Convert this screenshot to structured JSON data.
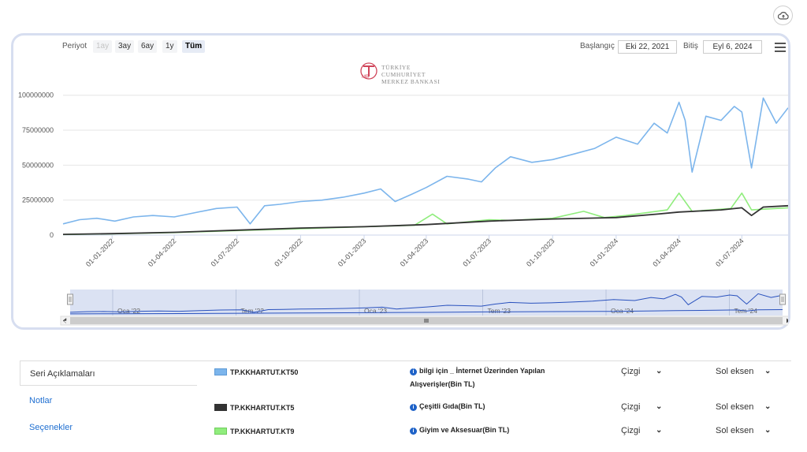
{
  "toolbar": {
    "period_label": "Periyot",
    "range_buttons": [
      "1ay",
      "3ay",
      "6ay",
      "1y",
      "Tüm"
    ],
    "start_label": "Başlangıç",
    "start_value": "Eki 22, 2021",
    "end_label": "Bitiş",
    "end_value": "Eyl 6, 2024"
  },
  "logo": {
    "mark": "TCMB",
    "line1": "TÜRKİYE CUMHURİYET",
    "line2": "MERKEZ BANKASI"
  },
  "navigator": {
    "labels": [
      "Oca '22",
      "Tem '22",
      "Oca '23",
      "Tem '23",
      "Oca '24",
      "Tem '24"
    ]
  },
  "tabs": {
    "items": [
      "Seri Açıklamaları",
      "Notlar",
      "Seçenekler"
    ]
  },
  "series_table": {
    "rows": [
      {
        "code": "TP.KKHARTUT.KT50",
        "description": "bilgi için _ İnternet Üzerinden Yapılan Alışverişler(Bin TL)",
        "type": "Çizgi",
        "axis": "Sol eksen",
        "color": "#7cb5ec"
      },
      {
        "code": "TP.KKHARTUT.KT5",
        "description": "Çeşitli Gıda(Bin TL)",
        "type": "Çizgi",
        "axis": "Sol eksen",
        "color": "#333333"
      },
      {
        "code": "TP.KKHARTUT.KT9",
        "description": "Giyim ve Aksesuar(Bin TL)",
        "type": "Çizgi",
        "axis": "Sol eksen",
        "color": "#90ed7d"
      }
    ]
  },
  "colors": {
    "kt50": "#7cb5ec",
    "kt5": "#333333",
    "kt9": "#90ed7d",
    "navigator_fill": "#c7d3ec",
    "navigator_line": "#2a52be"
  },
  "chart_data": {
    "type": "line",
    "ylim": [
      0,
      100000000
    ],
    "y_ticks": [
      "0",
      "25000000",
      "50000000",
      "75000000",
      "100000000"
    ],
    "x_ticks": [
      "01-01-2022",
      "01-04-2022",
      "01-07-2022",
      "01-10-2022",
      "01-01-2023",
      "01-04-2023",
      "01-07-2023",
      "01-10-2023",
      "01-01-2024",
      "01-04-2024",
      "01-07-2024"
    ],
    "x_range": [
      "2021-10-22",
      "2024-09-06"
    ],
    "series": [
      {
        "name": "TP.KKHARTUT.KT50",
        "x": [
          "2021-10-22",
          "2021-11-15",
          "2021-12-10",
          "2022-01-05",
          "2022-02-01",
          "2022-03-01",
          "2022-04-01",
          "2022-05-01",
          "2022-06-01",
          "2022-07-01",
          "2022-07-20",
          "2022-08-10",
          "2022-09-01",
          "2022-10-01",
          "2022-11-01",
          "2022-12-01",
          "2023-01-01",
          "2023-01-25",
          "2023-02-15",
          "2023-03-10",
          "2023-04-01",
          "2023-05-01",
          "2023-06-01",
          "2023-06-20",
          "2023-07-10",
          "2023-08-01",
          "2023-09-01",
          "2023-10-01",
          "2023-11-01",
          "2023-12-01",
          "2024-01-01",
          "2024-02-01",
          "2024-02-25",
          "2024-03-15",
          "2024-04-01",
          "2024-04-10",
          "2024-04-20",
          "2024-05-10",
          "2024-06-01",
          "2024-06-20",
          "2024-07-01",
          "2024-07-15",
          "2024-08-01",
          "2024-08-20",
          "2024-09-06"
        ],
        "y": [
          8000000,
          11000000,
          12000000,
          10000000,
          13000000,
          14000000,
          13000000,
          16000000,
          19000000,
          20000000,
          8000000,
          21000000,
          22000000,
          24000000,
          25000000,
          27000000,
          30000000,
          33000000,
          24000000,
          29000000,
          34000000,
          42000000,
          40000000,
          38000000,
          48000000,
          56000000,
          52000000,
          54000000,
          58000000,
          62000000,
          70000000,
          65000000,
          80000000,
          73000000,
          95000000,
          82000000,
          45000000,
          85000000,
          82000000,
          92000000,
          88000000,
          48000000,
          98000000,
          80000000,
          91000000
        ]
      },
      {
        "name": "TP.KKHARTUT.KT5",
        "x": [
          "2021-10-22",
          "2022-01-01",
          "2022-04-01",
          "2022-07-01",
          "2022-10-01",
          "2023-01-01",
          "2023-04-01",
          "2023-07-01",
          "2023-10-01",
          "2024-01-01",
          "2024-03-01",
          "2024-04-01",
          "2024-06-01",
          "2024-07-01",
          "2024-07-15",
          "2024-08-01",
          "2024-09-06"
        ],
        "y": [
          500000,
          1000000,
          2000000,
          3500000,
          5000000,
          6000000,
          7500000,
          10000000,
          11500000,
          12500000,
          15000000,
          16500000,
          18000000,
          19500000,
          14000000,
          20000000,
          21000000
        ]
      },
      {
        "name": "TP.KKHARTUT.KT9",
        "x": [
          "2021-10-22",
          "2022-01-01",
          "2022-04-01",
          "2022-07-01",
          "2022-10-01",
          "2023-01-01",
          "2023-03-15",
          "2023-04-10",
          "2023-05-01",
          "2023-07-01",
          "2023-08-01",
          "2023-10-01",
          "2023-11-15",
          "2023-12-15",
          "2024-01-15",
          "2024-03-15",
          "2024-04-01",
          "2024-04-20",
          "2024-06-15",
          "2024-07-01",
          "2024-07-15",
          "2024-09-06"
        ],
        "y": [
          400000,
          900000,
          1800000,
          3200000,
          4500000,
          6000000,
          7000000,
          15000000,
          8000000,
          11000000,
          10500000,
          12000000,
          17000000,
          12500000,
          14000000,
          18000000,
          30000000,
          17000000,
          19000000,
          30000000,
          18000000,
          19500000
        ]
      }
    ],
    "grid": true,
    "legend": "none"
  }
}
